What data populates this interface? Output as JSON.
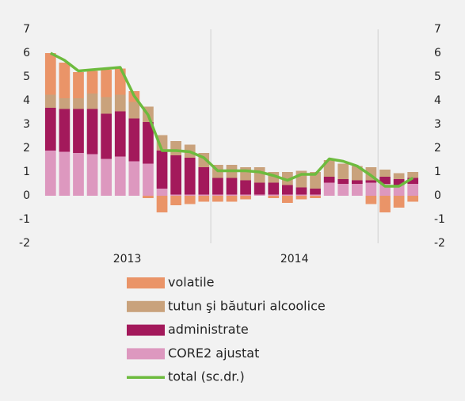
{
  "chart_data": {
    "type": "bar",
    "stacked": true,
    "categories": [
      null,
      null,
      null,
      null,
      null,
      null,
      null,
      null,
      null,
      null,
      null,
      null,
      null,
      null,
      null,
      null,
      null,
      null,
      null,
      null,
      null,
      null,
      null,
      null,
      null,
      null,
      null
    ],
    "x_groups": [
      {
        "label": "2013",
        "size": 12
      },
      {
        "label": "2014",
        "size": 12
      },
      {
        "label": null,
        "size": 3
      }
    ],
    "series": [
      {
        "name": "CORE2 ajustat",
        "color": "#dd98bf",
        "values": [
          1.9,
          1.85,
          1.8,
          1.75,
          1.55,
          1.65,
          1.45,
          1.35,
          0.3,
          0.05,
          0.05,
          0.05,
          0.05,
          0.05,
          0.05,
          0.05,
          0.05,
          0.05,
          0.05,
          0.05,
          0.55,
          0.5,
          0.5,
          0.55,
          0.5,
          0.45,
          0.5
        ]
      },
      {
        "name": "administrate",
        "color": "#a3195b",
        "values": [
          1.8,
          1.8,
          1.85,
          1.9,
          1.9,
          1.9,
          1.8,
          1.75,
          1.6,
          1.65,
          1.55,
          1.15,
          0.7,
          0.7,
          0.6,
          0.5,
          0.5,
          0.4,
          0.3,
          0.25,
          0.25,
          0.2,
          0.15,
          0.1,
          0.3,
          0.25,
          0.25
        ]
      },
      {
        "name": "tutun şi băuturi alcoolice",
        "color": "#c9a27c",
        "values": [
          0.55,
          0.45,
          0.45,
          0.65,
          0.7,
          0.7,
          0.7,
          0.65,
          0.65,
          0.6,
          0.55,
          0.6,
          0.55,
          0.55,
          0.55,
          0.65,
          0.45,
          0.55,
          0.7,
          0.7,
          0.7,
          0.65,
          0.6,
          0.55,
          0.3,
          0.25,
          0.25
        ]
      },
      {
        "name": "volatile",
        "color": "#ea9468",
        "values": [
          1.75,
          1.5,
          1.1,
          0.95,
          1.15,
          1.1,
          0.45,
          -0.1,
          -0.7,
          -0.4,
          -0.35,
          -0.25,
          -0.25,
          -0.25,
          -0.15,
          0,
          -0.1,
          -0.3,
          -0.15,
          -0.1,
          0,
          0,
          0,
          -0.35,
          -0.7,
          -0.5,
          -0.25
        ]
      },
      {
        "name": "total (sc.dr.)",
        "color": "#6dbb3e",
        "type": "line",
        "axis": "y2",
        "values": [
          6.0,
          5.7,
          5.25,
          5.3,
          5.35,
          5.4,
          4.2,
          3.4,
          1.9,
          1.9,
          1.85,
          1.6,
          1.05,
          1.05,
          1.05,
          1.0,
          0.85,
          0.65,
          0.9,
          0.9,
          1.55,
          1.45,
          1.25,
          0.85,
          0.4,
          0.4,
          0.75
        ]
      }
    ],
    "legend_order": [
      3,
      2,
      1,
      0,
      4
    ],
    "ylim": [
      -2,
      7
    ],
    "yticks": [
      -2,
      -1,
      0,
      1,
      2,
      3,
      4,
      5,
      6,
      7
    ],
    "y2lim": [
      -2,
      7
    ],
    "y2ticks": [
      -2,
      -1,
      0,
      1,
      2,
      3,
      4,
      5,
      6,
      7
    ]
  }
}
